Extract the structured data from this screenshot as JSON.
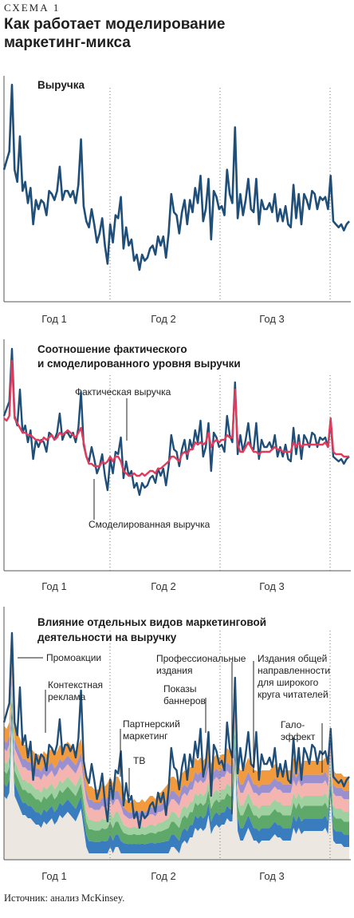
{
  "header": {
    "label": "СХЕМА 1",
    "title_line1": "Как работает моделирование",
    "title_line2": "маркетинг-микса"
  },
  "source": "Источник: анализ McKinsey.",
  "colors": {
    "actual": "#1f4e79",
    "modeled": "#e23a5b",
    "baseline": "#ece8e1",
    "channels": [
      "#3a7dbf",
      "#5ea86a",
      "#9fd0a0",
      "#f4b4b0",
      "#9a8fcf",
      "#f19a3e"
    ]
  },
  "chart_data": [
    {
      "type": "line",
      "title": "Выручка",
      "x_tick_labels": [
        "Год 1",
        "Год 2",
        "Год 3"
      ],
      "series": [
        {
          "values": [
            63,
            66,
            69,
            91,
            63,
            59,
            74,
            56,
            59,
            52,
            57,
            45,
            53,
            50,
            53,
            52,
            48,
            56,
            55,
            53,
            56,
            64,
            53,
            56,
            56,
            54,
            56,
            52,
            58,
            73,
            51,
            46,
            44,
            50,
            45,
            39,
            42,
            47,
            38,
            32,
            45,
            39,
            48,
            47,
            54,
            37,
            44,
            38,
            40,
            33,
            35,
            30,
            35,
            33,
            34,
            37,
            38,
            35,
            41,
            38,
            41,
            34,
            42,
            55,
            49,
            48,
            42,
            49,
            53,
            45,
            53,
            49,
            57,
            52,
            61,
            46,
            50,
            60,
            40,
            56,
            54,
            50,
            51,
            48,
            63,
            55,
            52,
            77,
            47,
            55,
            48,
            53,
            60,
            50,
            49,
            60,
            45,
            53,
            50,
            50,
            52,
            49,
            55,
            46,
            50,
            46,
            51,
            45,
            44,
            58,
            47,
            55,
            45,
            55,
            53,
            50,
            56,
            55,
            50,
            54,
            53,
            54,
            50,
            61,
            46,
            45,
            44,
            45,
            43,
            45,
            46
          ]
        }
      ]
    },
    {
      "type": "line",
      "title": "Соотношение фактического и смоделированного уровня выручки",
      "x_tick_labels": [
        "Год 1",
        "Год 2",
        "Год 3"
      ],
      "series": [
        {
          "name": "Фактическая выручка",
          "values": [
            63,
            66,
            69,
            91,
            63,
            59,
            74,
            56,
            59,
            52,
            57,
            45,
            53,
            50,
            53,
            52,
            48,
            56,
            55,
            53,
            56,
            64,
            53,
            56,
            56,
            54,
            56,
            52,
            58,
            73,
            51,
            46,
            44,
            50,
            45,
            39,
            42,
            47,
            38,
            32,
            45,
            39,
            48,
            47,
            54,
            37,
            44,
            38,
            40,
            33,
            35,
            30,
            35,
            33,
            34,
            37,
            38,
            35,
            41,
            38,
            41,
            34,
            42,
            55,
            49,
            48,
            42,
            49,
            53,
            45,
            53,
            49,
            57,
            52,
            61,
            46,
            50,
            60,
            40,
            56,
            54,
            50,
            51,
            48,
            63,
            55,
            52,
            77,
            47,
            55,
            48,
            53,
            60,
            50,
            49,
            60,
            45,
            53,
            50,
            50,
            52,
            49,
            55,
            46,
            50,
            46,
            51,
            45,
            44,
            58,
            47,
            55,
            45,
            55,
            53,
            50,
            56,
            55,
            50,
            54,
            53,
            54,
            50,
            61,
            46,
            45,
            44,
            45,
            43,
            45,
            46
          ]
        },
        {
          "name": "Смоделированная выручка",
          "values": [
            62,
            61,
            63,
            86,
            62,
            60,
            58,
            56,
            56,
            55,
            55,
            54,
            53,
            53,
            52,
            54,
            53,
            54,
            55,
            53,
            54,
            56,
            55,
            56,
            57,
            56,
            55,
            54,
            56,
            58,
            52,
            46,
            43,
            43,
            42,
            42,
            42,
            44,
            43,
            44,
            46,
            44,
            46,
            46,
            44,
            40,
            39,
            38,
            38,
            39,
            38,
            38,
            39,
            38,
            39,
            40,
            40,
            39,
            41,
            41,
            42,
            43,
            44,
            46,
            46,
            45,
            44,
            47,
            48,
            47,
            49,
            49,
            52,
            51,
            52,
            51,
            52,
            56,
            50,
            52,
            53,
            52,
            53,
            53,
            55,
            54,
            54,
            74,
            51,
            48,
            48,
            50,
            52,
            50,
            48,
            48,
            47,
            48,
            48,
            48,
            48,
            49,
            50,
            49,
            49,
            48,
            48,
            48,
            48,
            52,
            50,
            52,
            50,
            51,
            51,
            51,
            51,
            51,
            51,
            51,
            51,
            52,
            50,
            62,
            48,
            47,
            47,
            47,
            46,
            46,
            46
          ]
        }
      ]
    },
    {
      "type": "area",
      "title": "Влияние отдельных видов маркетинговой деятельности на выручку",
      "x_tick_labels": [
        "Год 1",
        "Год 2",
        "Год 3"
      ],
      "annotations": [
        "Промоакции",
        "Контекстная реклама",
        "Партнерский маркетинг",
        "ТВ",
        "Профессиональные издания",
        "Показы баннеров",
        "Издания общей направленности для широкого круга читателей",
        "Гало-эффект"
      ]
    }
  ]
}
